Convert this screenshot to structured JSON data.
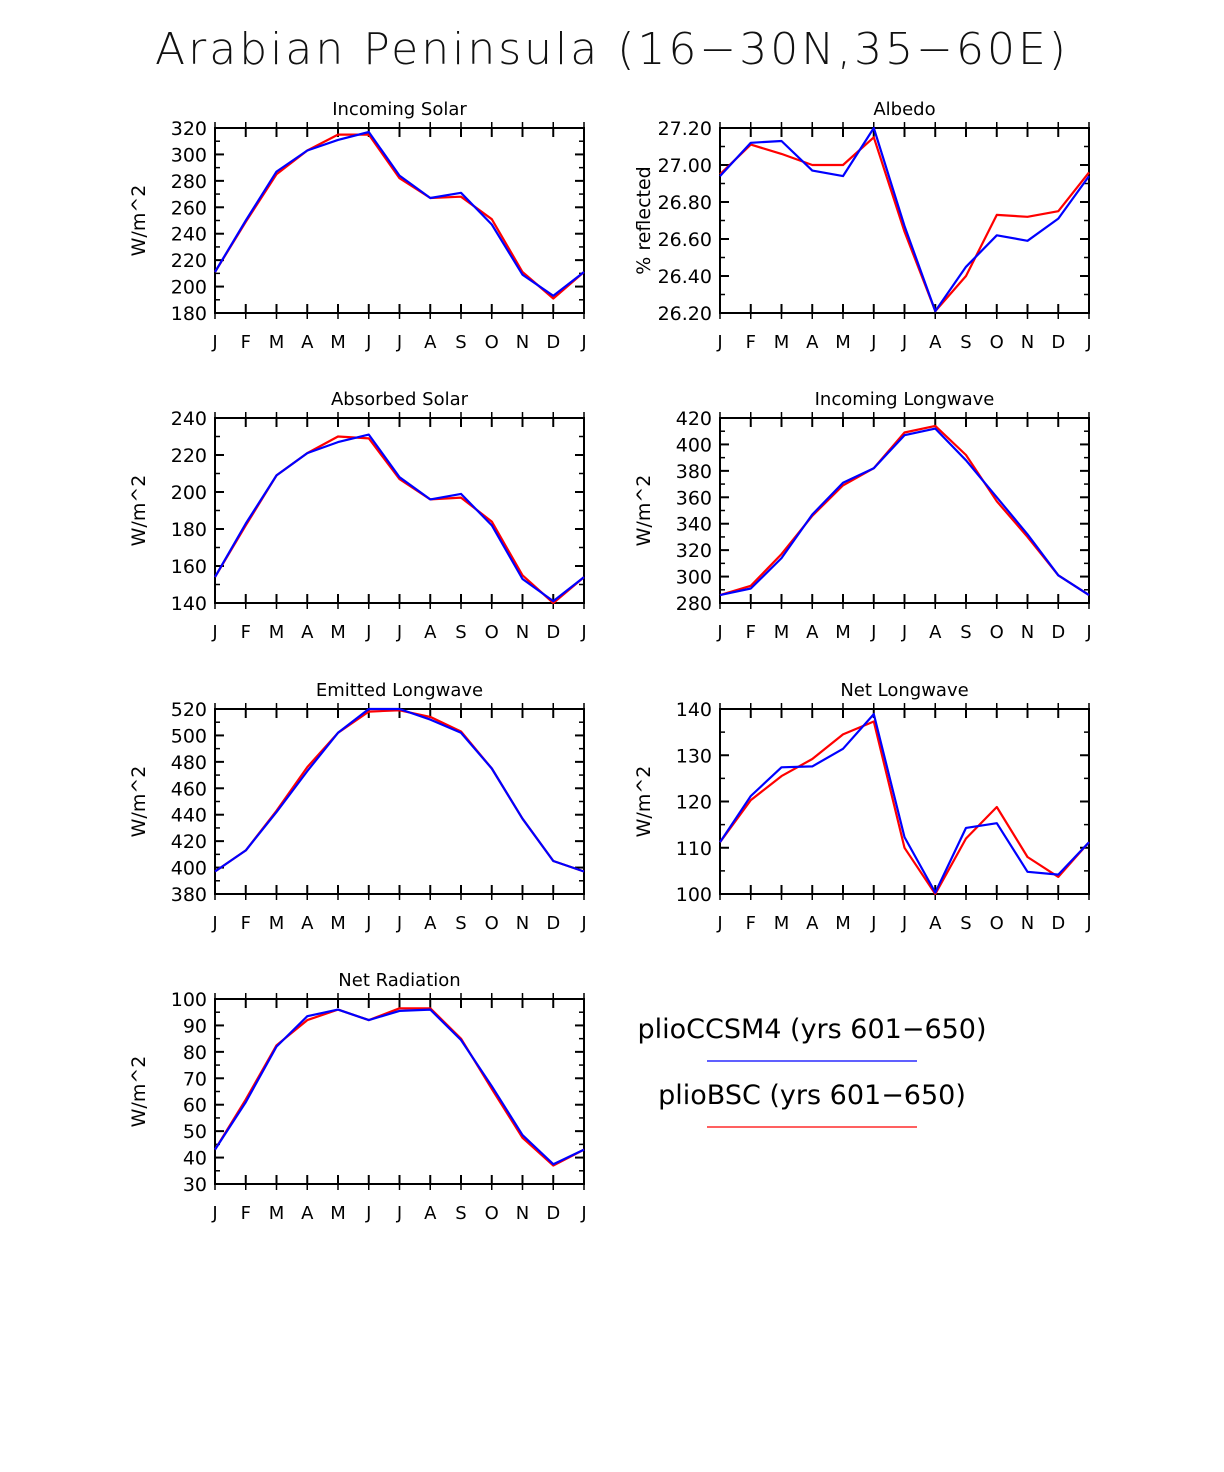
{
  "title": "Arabian Peninsula (16−30N,35−60E)",
  "legend": {
    "entries": [
      {
        "label": "plioCCSM4 (yrs 601−650)",
        "color": "#0000ff"
      },
      {
        "label": "plioBSC (yrs 601−650)",
        "color": "#ff0000"
      }
    ]
  },
  "chart_data": [
    {
      "type": "line",
      "title": "Incoming Solar",
      "ylabel": "W/m^2",
      "categories": [
        "J",
        "F",
        "M",
        "A",
        "M",
        "J",
        "J",
        "A",
        "S",
        "O",
        "N",
        "D",
        "J"
      ],
      "ylim": [
        180,
        320
      ],
      "yticks": [
        "320",
        "300",
        "280",
        "260",
        "240",
        "220",
        "200",
        "180"
      ],
      "series": [
        {
          "name": "plioBSC (yrs 601−650)",
          "color": "#ff0000",
          "values": [
            211,
            249,
            285,
            303,
            315,
            315,
            282,
            267,
            268,
            251,
            211,
            191,
            211
          ]
        },
        {
          "name": "plioCCSM4 (yrs 601−650)",
          "color": "#0000ff",
          "values": [
            211,
            250,
            287,
            303,
            311,
            317,
            284,
            267,
            271,
            247,
            209,
            193,
            211
          ]
        }
      ]
    },
    {
      "type": "line",
      "title": "Albedo",
      "ylabel": "% reflected",
      "categories": [
        "J",
        "F",
        "M",
        "A",
        "M",
        "J",
        "J",
        "A",
        "S",
        "O",
        "N",
        "D",
        "J"
      ],
      "ylim": [
        26.2,
        27.2
      ],
      "yticks": [
        "27.20",
        "27.00",
        "26.80",
        "26.60",
        "26.40",
        "26.20"
      ],
      "series": [
        {
          "name": "plioBSC (yrs 601−650)",
          "color": "#ff0000",
          "values": [
            26.95,
            27.11,
            27.06,
            27.0,
            27.0,
            27.15,
            26.64,
            26.21,
            26.4,
            26.73,
            26.72,
            26.75,
            26.96
          ]
        },
        {
          "name": "plioCCSM4 (yrs 601−650)",
          "color": "#0000ff",
          "values": [
            26.94,
            27.12,
            27.13,
            26.97,
            26.94,
            27.2,
            26.67,
            26.21,
            26.45,
            26.62,
            26.59,
            26.71,
            26.94
          ]
        }
      ]
    },
    {
      "type": "line",
      "title": "Absorbed Solar",
      "ylabel": "W/m^2",
      "categories": [
        "J",
        "F",
        "M",
        "A",
        "M",
        "J",
        "J",
        "A",
        "S",
        "O",
        "N",
        "D",
        "J"
      ],
      "ylim": [
        140,
        240
      ],
      "yticks": [
        "240",
        "220",
        "200",
        "180",
        "160",
        "140"
      ],
      "series": [
        {
          "name": "plioBSC (yrs 601−650)",
          "color": "#ff0000",
          "values": [
            154,
            182,
            209,
            221,
            230,
            229,
            207,
            196,
            197,
            184,
            155,
            140,
            154
          ]
        },
        {
          "name": "plioCCSM4 (yrs 601−650)",
          "color": "#0000ff",
          "values": [
            154,
            183,
            209,
            221,
            227,
            231,
            208,
            196,
            199,
            182,
            153,
            141,
            154
          ]
        }
      ]
    },
    {
      "type": "line",
      "title": "Incoming Longwave",
      "ylabel": "W/m^2",
      "categories": [
        "J",
        "F",
        "M",
        "A",
        "M",
        "J",
        "J",
        "A",
        "S",
        "O",
        "N",
        "D",
        "J"
      ],
      "ylim": [
        280,
        420
      ],
      "yticks": [
        "420",
        "400",
        "380",
        "360",
        "340",
        "320",
        "300",
        "280"
      ],
      "series": [
        {
          "name": "plioBSC (yrs 601−650)",
          "color": "#ff0000",
          "values": [
            286,
            293,
            317,
            346,
            369,
            382,
            409,
            414,
            392,
            357,
            330,
            301,
            286
          ]
        },
        {
          "name": "plioCCSM4 (yrs 601−650)",
          "color": "#0000ff",
          "values": [
            286,
            291,
            314,
            347,
            371,
            382,
            407,
            412,
            388,
            360,
            332,
            301,
            286
          ]
        }
      ]
    },
    {
      "type": "line",
      "title": "Emitted Longwave",
      "ylabel": "W/m^2",
      "categories": [
        "J",
        "F",
        "M",
        "A",
        "M",
        "J",
        "J",
        "A",
        "S",
        "O",
        "N",
        "D",
        "J"
      ],
      "ylim": [
        380,
        520
      ],
      "yticks": [
        "520",
        "500",
        "480",
        "460",
        "440",
        "420",
        "400",
        "380"
      ],
      "series": [
        {
          "name": "plioBSC (yrs 601−650)",
          "color": "#ff0000",
          "values": [
            397,
            413,
            443,
            476,
            502,
            518,
            519,
            514,
            503,
            475,
            437,
            405,
            397
          ]
        },
        {
          "name": "plioCCSM4 (yrs 601−650)",
          "color": "#0000ff",
          "values": [
            397,
            413,
            442,
            473,
            502,
            520,
            520,
            512,
            502,
            475,
            437,
            405,
            397
          ]
        }
      ]
    },
    {
      "type": "line",
      "title": "Net Longwave",
      "ylabel": "W/m^2",
      "categories": [
        "J",
        "F",
        "M",
        "A",
        "M",
        "J",
        "J",
        "A",
        "S",
        "O",
        "N",
        "D",
        "J"
      ],
      "ylim": [
        100,
        140
      ],
      "yticks": [
        "140",
        "130",
        "120",
        "110",
        "100"
      ],
      "series": [
        {
          "name": "plioBSC (yrs 601−650)",
          "color": "#ff0000",
          "values": [
            111.2,
            120.3,
            125.5,
            129.2,
            134.5,
            137.3,
            110.0,
            100.0,
            112.0,
            118.8,
            108.0,
            103.7,
            111.2
          ]
        },
        {
          "name": "plioCCSM4 (yrs 601−650)",
          "color": "#0000ff",
          "values": [
            111.2,
            121.2,
            127.4,
            127.6,
            131.4,
            138.9,
            112.3,
            100.3,
            114.3,
            115.3,
            104.8,
            104.2,
            111.2
          ]
        }
      ]
    },
    {
      "type": "line",
      "title": "Net Radiation",
      "ylabel": "W/m^2",
      "categories": [
        "J",
        "F",
        "M",
        "A",
        "M",
        "J",
        "J",
        "A",
        "S",
        "O",
        "N",
        "D",
        "J"
      ],
      "ylim": [
        30,
        100
      ],
      "yticks": [
        "100",
        "90",
        "80",
        "70",
        "60",
        "50",
        "40",
        "30"
      ],
      "series": [
        {
          "name": "plioBSC (yrs 601−650)",
          "color": "#ff0000",
          "values": [
            43,
            62,
            82.5,
            92,
            96,
            92,
            96.5,
            96.5,
            85,
            66,
            47.5,
            37,
            43
          ]
        },
        {
          "name": "plioCCSM4 (yrs 601−650)",
          "color": "#0000ff",
          "values": [
            43,
            61,
            82,
            93.5,
            96,
            92,
            95.5,
            96,
            84.5,
            67,
            48.5,
            37.5,
            43
          ]
        }
      ]
    }
  ]
}
